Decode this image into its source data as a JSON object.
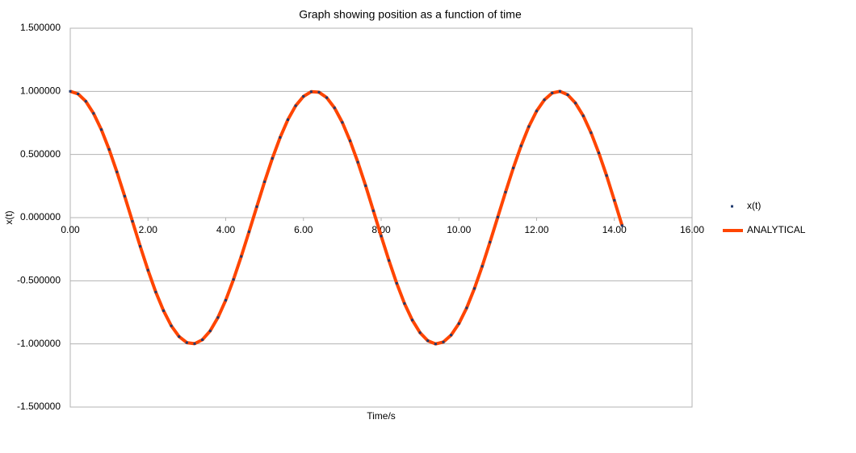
{
  "chart_data": {
    "type": "scatter-line",
    "title": "Graph showing position as a function  of time",
    "x_label": "Time/s",
    "y_label": "x(t)",
    "x": [
      0.0,
      0.2,
      0.4,
      0.6,
      0.8,
      1.0,
      1.2,
      1.4,
      1.6,
      1.8,
      2.0,
      2.2,
      2.4,
      2.6,
      2.8,
      3.0,
      3.2,
      3.4,
      3.6,
      3.8,
      4.0,
      4.2,
      4.4,
      4.6,
      4.8,
      5.0,
      5.2,
      5.4,
      5.6,
      5.8,
      6.0,
      6.2,
      6.4,
      6.6,
      6.8,
      7.0,
      7.2,
      7.4,
      7.6,
      7.8,
      8.0,
      8.2,
      8.4,
      8.6,
      8.8,
      9.0,
      9.2,
      9.4,
      9.6,
      9.8,
      10.0,
      10.2,
      10.4,
      10.6,
      10.8,
      11.0,
      11.2,
      11.4,
      11.6,
      11.8,
      12.0,
      12.2,
      12.4,
      12.6,
      12.8,
      13.0,
      13.2,
      13.4,
      13.6,
      13.8,
      14.0,
      14.2
    ],
    "series": [
      {
        "name": "x(t)",
        "color": "#1f3a6e",
        "style": "points",
        "values": [
          1.0,
          0.98,
          0.921,
          0.825,
          0.697,
          0.54,
          0.362,
          0.17,
          -0.029,
          -0.227,
          -0.416,
          -0.589,
          -0.737,
          -0.857,
          -0.942,
          -0.99,
          -0.998,
          -0.967,
          -0.897,
          -0.791,
          -0.654,
          -0.49,
          -0.307,
          -0.112,
          0.087,
          0.284,
          0.469,
          0.635,
          0.776,
          0.886,
          0.96,
          0.997,
          0.993,
          0.95,
          0.869,
          0.754,
          0.608,
          0.439,
          0.253,
          0.054,
          -0.146,
          -0.339,
          -0.52,
          -0.68,
          -0.811,
          -0.911,
          -0.975,
          -1.0,
          -0.985,
          -0.93,
          -0.839,
          -0.715,
          -0.561,
          -0.385,
          -0.194,
          0.004,
          0.202,
          0.393,
          0.568,
          0.721,
          0.844,
          0.933,
          0.987,
          1.0,
          0.973,
          0.907,
          0.806,
          0.672,
          0.512,
          0.333,
          0.137,
          -0.063
        ]
      },
      {
        "name": "ANALYTICAL",
        "color": "#ff4500",
        "style": "line",
        "values": [
          1.0,
          0.98,
          0.921,
          0.825,
          0.697,
          0.54,
          0.362,
          0.17,
          -0.029,
          -0.227,
          -0.416,
          -0.589,
          -0.737,
          -0.857,
          -0.942,
          -0.99,
          -0.998,
          -0.967,
          -0.897,
          -0.791,
          -0.654,
          -0.49,
          -0.307,
          -0.112,
          0.087,
          0.284,
          0.469,
          0.635,
          0.776,
          0.886,
          0.96,
          0.997,
          0.993,
          0.95,
          0.869,
          0.754,
          0.608,
          0.439,
          0.253,
          0.054,
          -0.146,
          -0.339,
          -0.52,
          -0.68,
          -0.811,
          -0.911,
          -0.975,
          -1.0,
          -0.985,
          -0.93,
          -0.839,
          -0.715,
          -0.561,
          -0.385,
          -0.194,
          0.004,
          0.202,
          0.393,
          0.568,
          0.721,
          0.844,
          0.933,
          0.987,
          1.0,
          0.973,
          0.907,
          0.806,
          0.672,
          0.512,
          0.333,
          0.137,
          -0.063
        ]
      }
    ],
    "xlim": [
      0,
      16
    ],
    "xticks": [
      {
        "value": 0,
        "label": "0.00"
      },
      {
        "value": 2,
        "label": "2.00"
      },
      {
        "value": 4,
        "label": "4.00"
      },
      {
        "value": 6,
        "label": "6.00"
      },
      {
        "value": 8,
        "label": "8.00"
      },
      {
        "value": 10,
        "label": "10.00"
      },
      {
        "value": 12,
        "label": "12.00"
      },
      {
        "value": 14,
        "label": "14.00"
      },
      {
        "value": 16,
        "label": "16.00"
      }
    ],
    "ylim": [
      -1.5,
      1.5
    ],
    "yticks": [
      {
        "value": -1.5,
        "label": "-1.500000"
      },
      {
        "value": -1,
        "label": "-1.000000"
      },
      {
        "value": -0.5,
        "label": "-0.500000"
      },
      {
        "value": 0,
        "label": "0.000000"
      },
      {
        "value": 0.5,
        "label": "0.500000"
      },
      {
        "value": 1,
        "label": "1.000000"
      },
      {
        "value": 1.5,
        "label": "1.500000"
      }
    ],
    "grid": true,
    "legend": "right"
  }
}
